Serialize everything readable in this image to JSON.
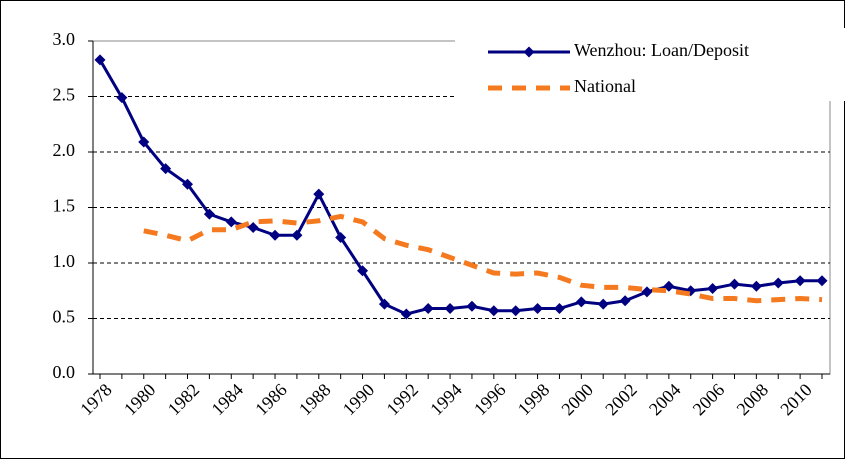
{
  "chart_data": {
    "type": "line",
    "categories": [
      "1978",
      null,
      "1980",
      null,
      "1982",
      null,
      "1984",
      null,
      "1986",
      null,
      "1988",
      null,
      "1990",
      null,
      "1992",
      null,
      "1994",
      null,
      "1996",
      null,
      "1998",
      null,
      "2000",
      null,
      "2002",
      null,
      "2004",
      null,
      "2006",
      null,
      "2008",
      null,
      "2010",
      null
    ],
    "series": [
      {
        "name": "Wenzhou: Loan/Deposit",
        "color": "#000080",
        "style": "solid",
        "marker": "diamond",
        "values": [
          2.83,
          2.49,
          2.09,
          1.85,
          1.71,
          1.44,
          1.37,
          1.32,
          1.25,
          1.25,
          1.62,
          1.23,
          0.93,
          0.63,
          0.54,
          0.59,
          0.59,
          0.61,
          0.57,
          0.57,
          0.59,
          0.59,
          0.65,
          0.63,
          0.66,
          0.74,
          0.79,
          0.75,
          0.77,
          0.81,
          0.79,
          0.82,
          0.84,
          0.84
        ]
      },
      {
        "name": "National",
        "color": "#f57a1f",
        "style": "dashed",
        "marker": "none",
        "values": [
          null,
          null,
          1.29,
          1.25,
          1.2,
          1.3,
          1.3,
          1.37,
          1.38,
          1.36,
          1.38,
          1.42,
          1.37,
          1.22,
          1.16,
          1.12,
          1.05,
          0.98,
          0.91,
          0.9,
          0.91,
          0.87,
          0.8,
          0.78,
          0.78,
          0.76,
          0.75,
          0.72,
          0.68,
          0.68,
          0.66,
          0.67,
          0.68,
          0.67
        ]
      }
    ],
    "ylim": [
      0,
      3
    ],
    "yticks": [
      {
        "value": 0,
        "label": "0.0"
      },
      0.5,
      {
        "value": 1,
        "label": "1.0"
      },
      1.5,
      {
        "value": 2,
        "label": "2.0"
      },
      2.5,
      {
        "value": 3,
        "label": "3.0"
      }
    ],
    "grid": true,
    "legend": "top-right"
  }
}
